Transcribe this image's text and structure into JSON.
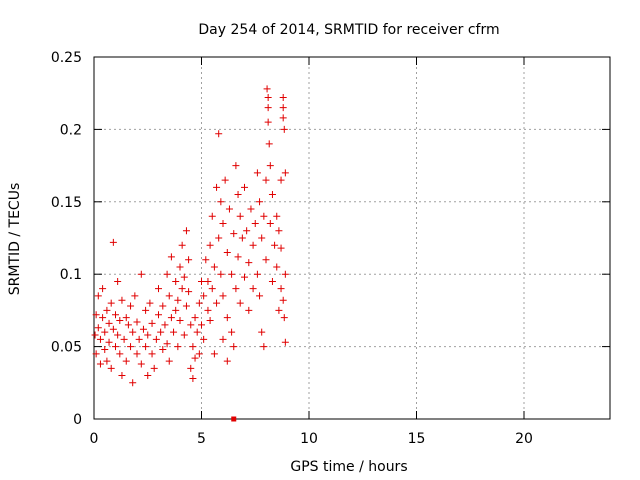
{
  "chart_data": {
    "type": "scatter",
    "title": "Day 254 of 2014, SRMTID for receiver cfrm",
    "xlabel": "GPS time / hours",
    "ylabel": "SRMTID / TECUs",
    "xlim": [
      0,
      24
    ],
    "ylim": [
      0,
      0.25
    ],
    "xticks": [
      0,
      5,
      10,
      15,
      20
    ],
    "xtick_labels": [
      "0",
      "5",
      "10",
      "15",
      "20"
    ],
    "yticks": [
      0,
      0.05,
      0.1,
      0.15,
      0.2,
      0.25
    ],
    "ytick_labels": [
      "0",
      "0.05",
      "0.1",
      "0.15",
      "0.2",
      "0.25"
    ],
    "grid": true,
    "marker": "plus",
    "color": "#e00000",
    "zero_marker": {
      "x": 6.5,
      "y": 0
    },
    "series": [
      {
        "name": "SRMTID",
        "points": [
          [
            0.05,
            0.058
          ],
          [
            0.1,
            0.072
          ],
          [
            0.1,
            0.045
          ],
          [
            0.2,
            0.085
          ],
          [
            0.2,
            0.063
          ],
          [
            0.3,
            0.055
          ],
          [
            0.3,
            0.038
          ],
          [
            0.4,
            0.07
          ],
          [
            0.4,
            0.09
          ],
          [
            0.5,
            0.06
          ],
          [
            0.5,
            0.048
          ],
          [
            0.6,
            0.075
          ],
          [
            0.6,
            0.04
          ],
          [
            0.7,
            0.066
          ],
          [
            0.7,
            0.053
          ],
          [
            0.8,
            0.08
          ],
          [
            0.8,
            0.035
          ],
          [
            0.9,
            0.122
          ],
          [
            0.9,
            0.062
          ],
          [
            1.0,
            0.05
          ],
          [
            1.0,
            0.072
          ],
          [
            1.1,
            0.095
          ],
          [
            1.1,
            0.058
          ],
          [
            1.2,
            0.045
          ],
          [
            1.2,
            0.068
          ],
          [
            1.3,
            0.03
          ],
          [
            1.3,
            0.082
          ],
          [
            1.4,
            0.055
          ],
          [
            1.5,
            0.07
          ],
          [
            1.5,
            0.04
          ],
          [
            1.6,
            0.065
          ],
          [
            1.7,
            0.05
          ],
          [
            1.7,
            0.078
          ],
          [
            1.8,
            0.025
          ],
          [
            1.8,
            0.06
          ],
          [
            1.9,
            0.085
          ],
          [
            2.0,
            0.045
          ],
          [
            2.0,
            0.067
          ],
          [
            2.1,
            0.055
          ],
          [
            2.2,
            0.1
          ],
          [
            2.2,
            0.038
          ],
          [
            2.3,
            0.062
          ],
          [
            2.4,
            0.05
          ],
          [
            2.4,
            0.075
          ],
          [
            2.5,
            0.03
          ],
          [
            2.5,
            0.058
          ],
          [
            2.6,
            0.08
          ],
          [
            2.7,
            0.045
          ],
          [
            2.7,
            0.066
          ],
          [
            2.8,
            0.035
          ],
          [
            2.9,
            0.055
          ],
          [
            3.0,
            0.072
          ],
          [
            3.0,
            0.09
          ],
          [
            3.1,
            0.06
          ],
          [
            3.2,
            0.048
          ],
          [
            3.2,
            0.078
          ],
          [
            3.3,
            0.065
          ],
          [
            3.4,
            0.1
          ],
          [
            3.4,
            0.052
          ],
          [
            3.5,
            0.085
          ],
          [
            3.5,
            0.04
          ],
          [
            3.6,
            0.07
          ],
          [
            3.6,
            0.112
          ],
          [
            3.7,
            0.06
          ],
          [
            3.8,
            0.095
          ],
          [
            3.8,
            0.075
          ],
          [
            3.9,
            0.05
          ],
          [
            3.9,
            0.082
          ],
          [
            4.0,
            0.105
          ],
          [
            4.0,
            0.068
          ],
          [
            4.1,
            0.09
          ],
          [
            4.1,
            0.12
          ],
          [
            4.2,
            0.058
          ],
          [
            4.2,
            0.098
          ],
          [
            4.3,
            0.078
          ],
          [
            4.3,
            0.13
          ],
          [
            4.4,
            0.11
          ],
          [
            4.4,
            0.088
          ],
          [
            4.5,
            0.065
          ],
          [
            4.5,
            0.035
          ],
          [
            4.6,
            0.028
          ],
          [
            4.6,
            0.05
          ],
          [
            4.7,
            0.07
          ],
          [
            4.7,
            0.042
          ],
          [
            4.8,
            0.06
          ],
          [
            4.9,
            0.08
          ],
          [
            4.9,
            0.045
          ],
          [
            5.0,
            0.095
          ],
          [
            5.0,
            0.065
          ],
          [
            5.1,
            0.085
          ],
          [
            5.1,
            0.055
          ],
          [
            5.2,
            0.11
          ],
          [
            5.3,
            0.075
          ],
          [
            5.3,
            0.095
          ],
          [
            5.4,
            0.12
          ],
          [
            5.4,
            0.068
          ],
          [
            5.5,
            0.14
          ],
          [
            5.5,
            0.09
          ],
          [
            5.6,
            0.105
          ],
          [
            5.7,
            0.16
          ],
          [
            5.7,
            0.08
          ],
          [
            5.8,
            0.125
          ],
          [
            5.8,
            0.197
          ],
          [
            5.9,
            0.15
          ],
          [
            5.9,
            0.1
          ],
          [
            6.0,
            0.135
          ],
          [
            6.0,
            0.085
          ],
          [
            6.1,
            0.165
          ],
          [
            6.2,
            0.115
          ],
          [
            6.2,
            0.07
          ],
          [
            6.3,
            0.145
          ],
          [
            6.4,
            0.1
          ],
          [
            6.4,
            0.06
          ],
          [
            6.5,
            0.128
          ],
          [
            6.6,
            0.175
          ],
          [
            6.6,
            0.09
          ],
          [
            6.7,
            0.155
          ],
          [
            6.7,
            0.112
          ],
          [
            6.8,
            0.14
          ],
          [
            6.8,
            0.08
          ],
          [
            6.9,
            0.125
          ],
          [
            7.0,
            0.098
          ],
          [
            7.0,
            0.16
          ],
          [
            7.1,
            0.13
          ],
          [
            7.2,
            0.108
          ],
          [
            7.2,
            0.075
          ],
          [
            7.3,
            0.145
          ],
          [
            7.4,
            0.12
          ],
          [
            7.4,
            0.09
          ],
          [
            7.5,
            0.135
          ],
          [
            7.6,
            0.17
          ],
          [
            7.6,
            0.1
          ],
          [
            7.7,
            0.085
          ],
          [
            7.7,
            0.15
          ],
          [
            7.8,
            0.125
          ],
          [
            7.8,
            0.06
          ],
          [
            7.9,
            0.14
          ],
          [
            7.9,
            0.05
          ],
          [
            8.0,
            0.165
          ],
          [
            8.0,
            0.11
          ],
          [
            8.05,
            0.228
          ],
          [
            8.1,
            0.222
          ],
          [
            8.1,
            0.215
          ],
          [
            8.1,
            0.205
          ],
          [
            8.15,
            0.19
          ],
          [
            8.2,
            0.175
          ],
          [
            8.2,
            0.135
          ],
          [
            8.3,
            0.095
          ],
          [
            8.3,
            0.155
          ],
          [
            8.4,
            0.12
          ],
          [
            8.5,
            0.105
          ],
          [
            8.5,
            0.14
          ],
          [
            8.6,
            0.075
          ],
          [
            8.6,
            0.13
          ],
          [
            8.7,
            0.09
          ],
          [
            8.7,
            0.165
          ],
          [
            8.8,
            0.222
          ],
          [
            8.8,
            0.215
          ],
          [
            8.8,
            0.208
          ],
          [
            8.85,
            0.2
          ],
          [
            8.9,
            0.17
          ],
          [
            8.9,
            0.1
          ],
          [
            8.9,
            0.053
          ],
          [
            8.85,
            0.07
          ],
          [
            8.8,
            0.082
          ],
          [
            8.7,
            0.118
          ],
          [
            6.0,
            0.055
          ],
          [
            6.5,
            0.05
          ],
          [
            6.2,
            0.04
          ],
          [
            5.6,
            0.045
          ]
        ]
      }
    ]
  }
}
